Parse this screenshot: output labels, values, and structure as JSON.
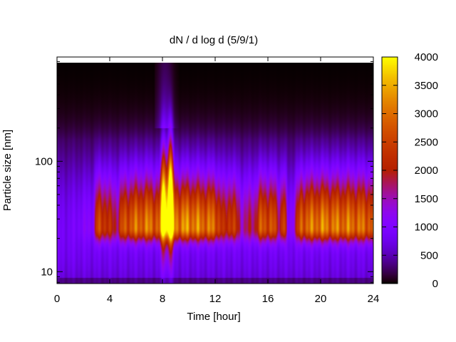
{
  "chart_data": {
    "type": "heatmap",
    "title": "dN / d log d (5/9/1)",
    "xlabel": "Time [hour]",
    "ylabel": "Particle size [nm]",
    "x_ticks": [
      0,
      4,
      8,
      12,
      16,
      20,
      24
    ],
    "y_ticks": [
      10,
      100
    ],
    "y_scale": "log",
    "xlim": [
      0,
      24
    ],
    "ylim_nm": [
      7.8,
      880
    ],
    "colorbar": {
      "ticks": [
        0,
        500,
        1000,
        1500,
        2000,
        2500,
        3000,
        3500,
        4000
      ],
      "range": [
        0,
        4000
      ],
      "colormap": "gnuplot-default",
      "placement": "right"
    },
    "background_level": 850,
    "pollution_mode": {
      "hour_profile": [
        [
          0,
          0
        ],
        [
          1.0,
          0
        ],
        [
          2.8,
          0.15
        ],
        [
          3.0,
          0.75
        ],
        [
          3.5,
          0.8
        ],
        [
          4.0,
          0.6
        ],
        [
          4.6,
          0.5
        ],
        [
          5.0,
          0.85
        ],
        [
          6.0,
          1.0
        ],
        [
          7.0,
          1.05
        ],
        [
          7.8,
          0.9
        ],
        [
          8.2,
          1.1
        ],
        [
          9.0,
          1.1
        ],
        [
          10.0,
          1.15
        ],
        [
          11.0,
          1.05
        ],
        [
          12.0,
          1.0
        ],
        [
          12.7,
          0.55
        ],
        [
          13.2,
          0.85
        ],
        [
          14.0,
          0.35
        ],
        [
          15.0,
          0.5
        ],
        [
          15.5,
          0.9
        ],
        [
          16.4,
          0.85
        ],
        [
          16.9,
          0.5
        ],
        [
          17.2,
          0.95
        ],
        [
          17.5,
          0.1
        ],
        [
          17.9,
          0.2
        ],
        [
          18.5,
          0.95
        ],
        [
          20.0,
          1.1
        ],
        [
          21.0,
          1.05
        ],
        [
          22.0,
          1.05
        ],
        [
          23.0,
          1.0
        ],
        [
          24.0,
          0.95
        ]
      ],
      "center_nm": 25,
      "amplitude": 2100
    },
    "burst_events": [
      {
        "hour": 8.1,
        "peak_nm": 45,
        "amplitude": 2600
      },
      {
        "hour": 8.6,
        "peak_nm": 50,
        "amplitude": 3600
      }
    ],
    "no_data_cells": [
      {
        "hour_start": 0.0,
        "hour_end": 0.4,
        "size_nm": 860
      },
      {
        "hour_start": 0.4,
        "hour_end": 0.7,
        "size_nm": 840
      },
      {
        "hour_start": 1.8,
        "hour_end": 2.2,
        "size_nm": 860
      },
      {
        "hour_start": 6.7,
        "hour_end": 6.8,
        "size_nm": 860
      },
      {
        "hour_start": 15.0,
        "hour_end": 15.1,
        "size_nm": 860
      },
      {
        "hour_start": 18.5,
        "hour_end": 18.6,
        "size_nm": 860
      }
    ]
  }
}
